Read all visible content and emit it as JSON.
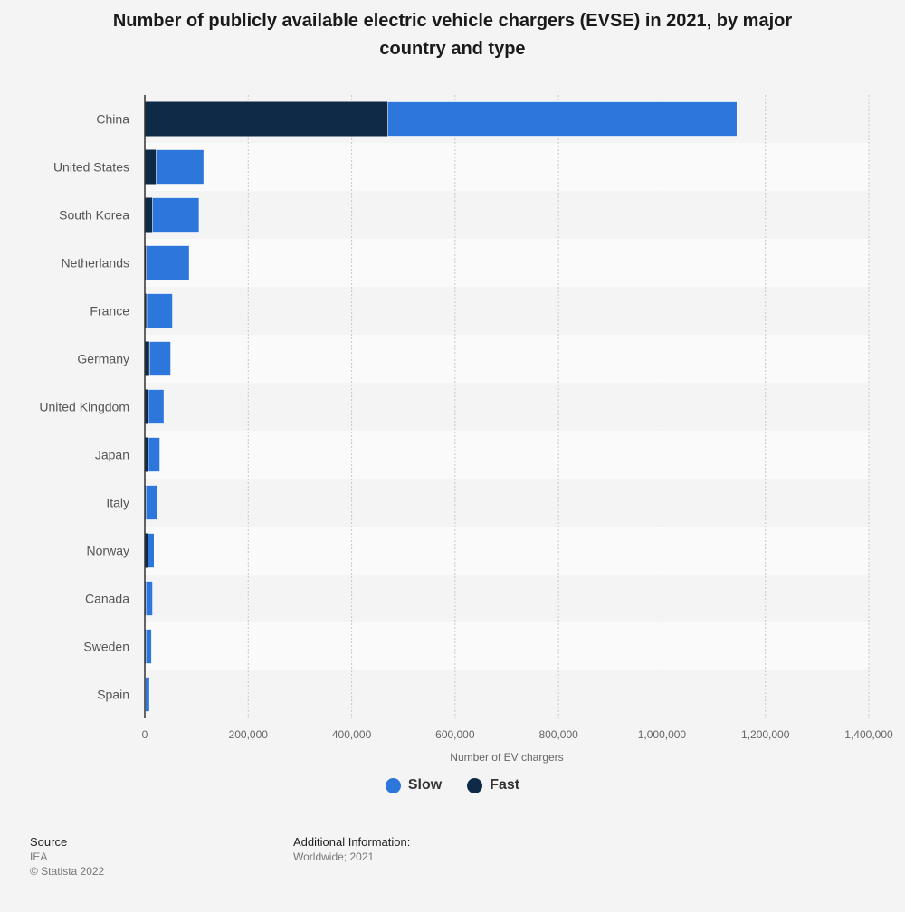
{
  "chart_data": {
    "type": "bar",
    "orientation": "horizontal",
    "stacked": true,
    "title": "Number of publicly available electric vehicle chargers (EVSE) in 2021, by major country and type",
    "title_lines": [
      "Number of publicly available electric vehicle chargers (EVSE) in 2021, by major",
      "country and type"
    ],
    "xlabel": "Number of EV chargers",
    "ylabel": "",
    "xlim": [
      0,
      1400000
    ],
    "x_ticks": [
      0,
      200000,
      400000,
      600000,
      800000,
      1000000,
      1200000,
      1400000
    ],
    "x_tick_labels": [
      "0",
      "200,000",
      "400,000",
      "600,000",
      "800,000",
      "1,000,000",
      "1,200,000",
      "1,400,000"
    ],
    "categories": [
      "China",
      "United States",
      "South Korea",
      "Netherlands",
      "France",
      "Germany",
      "United Kingdom",
      "Japan",
      "Italy",
      "Norway",
      "Canada",
      "Sweden",
      "Spain"
    ],
    "series": [
      {
        "name": "Fast",
        "color": "#0f2a47",
        "values": [
          470000,
          22000,
          15000,
          3000,
          3500,
          9000,
          7000,
          7000,
          2000,
          6000,
          2000,
          2000,
          1000
        ]
      },
      {
        "name": "Slow",
        "color": "#2d77dc",
        "values": [
          675000,
          92000,
          90000,
          83000,
          50000,
          41000,
          30000,
          22000,
          22000,
          12000,
          13000,
          11000,
          8000
        ]
      }
    ],
    "legend": [
      {
        "name": "Slow",
        "color": "#2d77dc"
      },
      {
        "name": "Fast",
        "color": "#0f2a47"
      }
    ],
    "legend_position": "bottom-center",
    "grid": true
  },
  "footer": {
    "source_label": "Source",
    "source_value": "IEA",
    "copyright": "© Statista 2022",
    "info_label": "Additional Information:",
    "info_value": "Worldwide; 2021"
  }
}
